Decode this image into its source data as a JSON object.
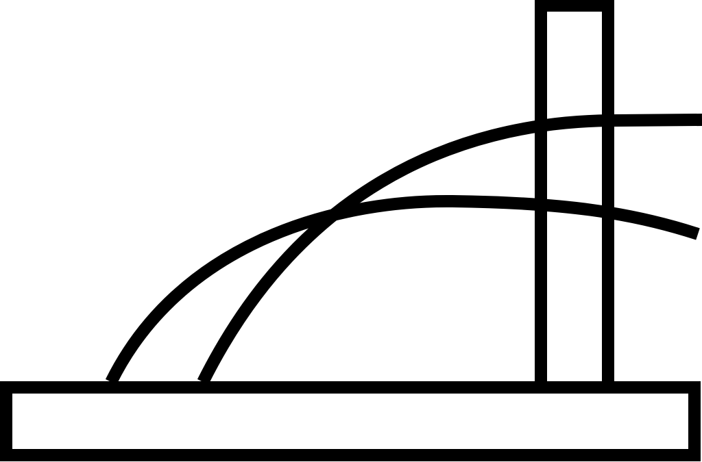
{
  "diagram": {
    "colors": {
      "line": "#000000",
      "background": "#ffffff"
    }
  }
}
